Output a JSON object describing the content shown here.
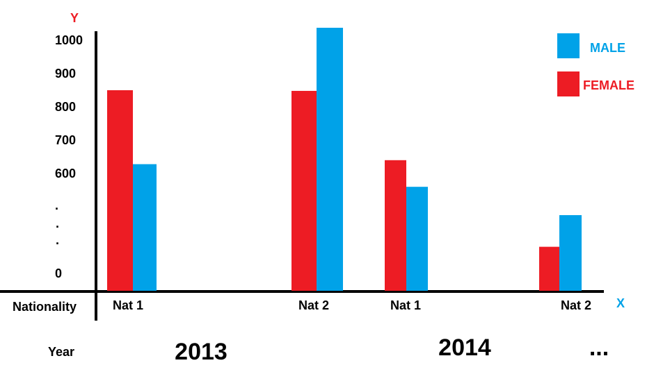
{
  "chart_data": {
    "type": "bar",
    "y_axis_label": "Y",
    "x_axis_label": "X",
    "y_tick_labels": [
      "1000",
      "900",
      "800",
      "700",
      "600",
      ".",
      ".",
      ".",
      "0"
    ],
    "row_labels": {
      "nationality": "Nationality",
      "year": "Year"
    },
    "categories": [
      "Nat 1",
      "Nat 2",
      "Nat 1",
      "Nat 2"
    ],
    "years": [
      "2013",
      "2014",
      "..."
    ],
    "series": [
      {
        "name": "FEMALE",
        "color": "#ed1c24",
        "values": [
          850,
          848,
          640,
          380
        ]
      },
      {
        "name": "MALE",
        "color": "#00a2e8",
        "values": [
          628,
          1040,
          560,
          475
        ]
      }
    ],
    "legend": {
      "placement": "top-right"
    },
    "grid": false
  }
}
